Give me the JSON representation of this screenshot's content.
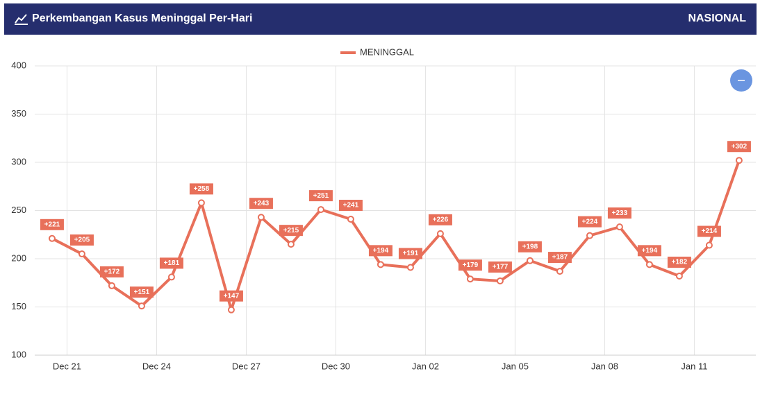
{
  "header": {
    "title": "Perkembangan Kasus Meninggal Per-Hari",
    "region": "NASIONAL"
  },
  "chart_data": {
    "type": "line",
    "x": [
      0,
      1,
      2,
      3,
      4,
      5,
      6,
      7,
      8,
      9,
      10,
      11,
      12,
      13,
      14,
      15,
      16,
      17,
      18,
      19,
      20,
      21,
      22,
      23
    ],
    "series": [
      {
        "name": "MENINGGAL",
        "color": "#e8705a",
        "values": [
          221,
          205,
          172,
          151,
          181,
          258,
          147,
          243,
          215,
          251,
          241,
          194,
          191,
          226,
          179,
          177,
          198,
          187,
          224,
          233,
          194,
          182,
          214,
          302
        ],
        "value_labels": [
          "+221",
          "+205",
          "+172",
          "+151",
          "+181",
          "+258",
          "+147",
          "+243",
          "+215",
          "+251",
          "+241",
          "+194",
          "+191",
          "+226",
          "+179",
          "+177",
          "+198",
          "+187",
          "+224",
          "+233",
          "+194",
          "+182",
          "+214",
          "+302"
        ]
      }
    ],
    "xlim": [
      -0.58,
      23.56
    ],
    "xticks": [
      {
        "value": 0.5,
        "label": "Dec 21"
      },
      {
        "value": 3.5,
        "label": "Dec 24"
      },
      {
        "value": 6.5,
        "label": "Dec 27"
      },
      {
        "value": 9.5,
        "label": "Dec 30"
      },
      {
        "value": 12.5,
        "label": "Jan 02"
      },
      {
        "value": 15.5,
        "label": "Jan 05"
      },
      {
        "value": 18.5,
        "label": "Jan 08"
      },
      {
        "value": 21.5,
        "label": "Jan 11"
      }
    ],
    "ylim": [
      100,
      400
    ],
    "yticks": [
      100,
      150,
      200,
      250,
      300,
      350,
      400
    ],
    "grid": true
  }
}
